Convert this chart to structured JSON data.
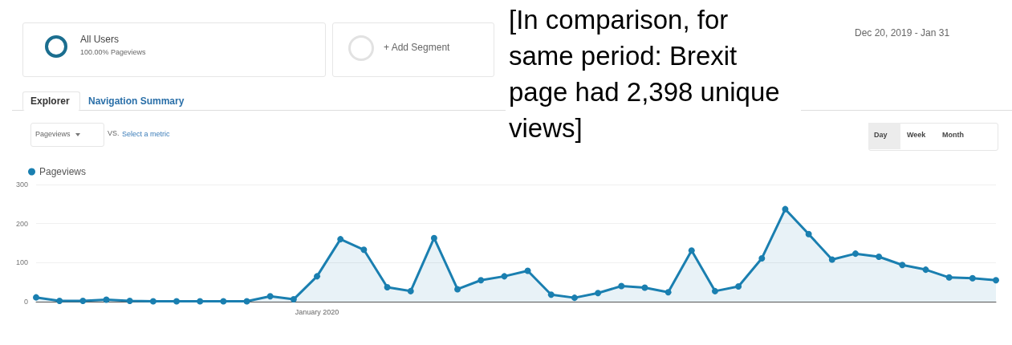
{
  "chart_data": {
    "type": "area",
    "categories": [
      null,
      null,
      null,
      null,
      null,
      null,
      null,
      null,
      null,
      null,
      null,
      null,
      "January 2020",
      null,
      null,
      null,
      null,
      null,
      null,
      null,
      null,
      null,
      null,
      null,
      null,
      null,
      null,
      null,
      null,
      null,
      null,
      null,
      null,
      null,
      null,
      null,
      null,
      null,
      null,
      null,
      null,
      null
    ],
    "series": [
      {
        "name": "Pageviews",
        "color": "#1a7fb0",
        "values": [
          11,
          2,
          2,
          5,
          2,
          1,
          1,
          1,
          1,
          1,
          14,
          6,
          65,
          160,
          133,
          37,
          27,
          163,
          32,
          55,
          65,
          79,
          18,
          10,
          22,
          40,
          36,
          24,
          131,
          27,
          39,
          111,
          237,
          173,
          108,
          123,
          115,
          94,
          82,
          62,
          60,
          55
        ]
      }
    ],
    "ylim": [
      0,
      300
    ],
    "yticks": [
      0,
      100,
      200,
      300
    ],
    "grid": "y",
    "legend": "top left",
    "marker": "circle",
    "line_style": "solid",
    "annotations": [
      "All Users",
      "100.00% Pageviews",
      "+ Add Segment",
      "Explorer",
      "Navigation Summary",
      "Pageviews",
      "VS.",
      "Select a metric",
      "Dec 20, 2019 - Jan 31",
      "Day",
      "Week",
      "Month",
      "[In comparison, for same period: Brexit page had 2,398 unique views]"
    ]
  }
}
